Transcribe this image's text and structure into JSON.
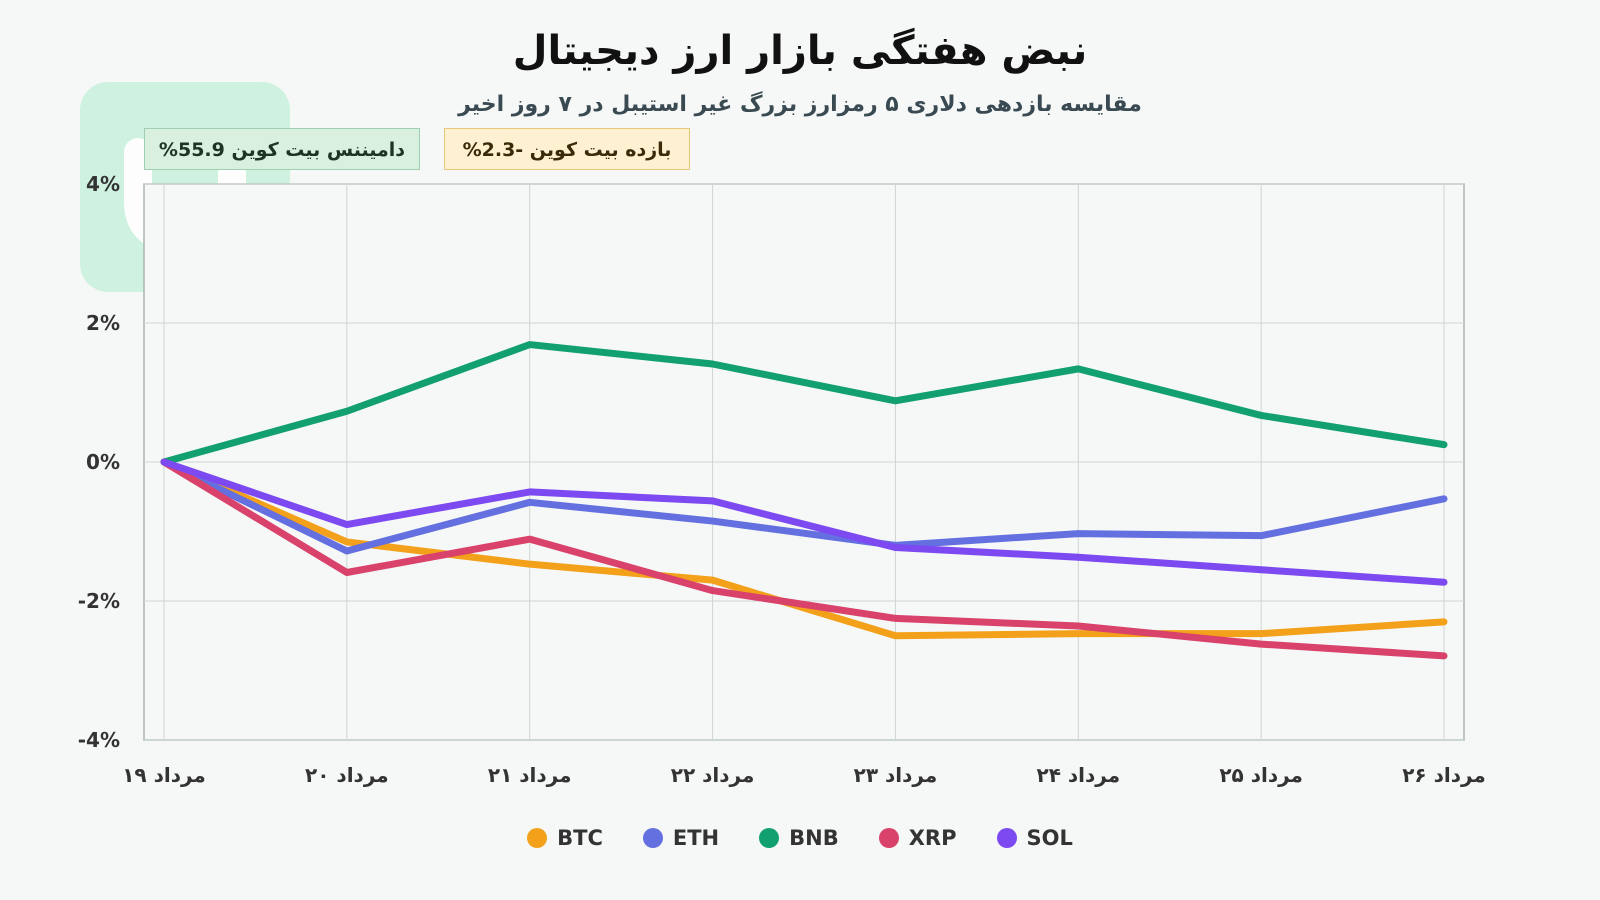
{
  "header": {
    "title": "نبض هفتگی بازار ارز دیجیتال",
    "subtitle": "مقایسه بازدهی دلاری ۵ رمزارز بزرگ غیر استیبل در ۷ روز اخیر"
  },
  "badges": {
    "dominance": "دامیننس بیت کوین 55.9%",
    "return": "بازده بیت کوین -2.3%"
  },
  "colors": {
    "logo": "#c9f2dc",
    "BTC": "#f3a01a",
    "ETH": "#6470e0",
    "BNB": "#12a070",
    "XRP": "#d9426a",
    "SOL": "#7c4af0"
  },
  "chart_data": {
    "type": "line",
    "x": [
      "مرداد ۱۹",
      "مرداد ۲۰",
      "مرداد ۲۱",
      "مرداد ۲۲",
      "مرداد ۲۳",
      "مرداد ۲۴",
      "مرداد ۲۵",
      "مرداد ۲۶"
    ],
    "ylim": [
      -4,
      4
    ],
    "yticks": [
      4,
      2,
      0,
      -2,
      -4
    ],
    "ytick_labels": [
      "4%",
      "2%",
      "0%",
      "-2%",
      "-4%"
    ],
    "grid": true,
    "legend_position": "bottom",
    "series": [
      {
        "name": "BTC",
        "color": "#f3a01a",
        "values": [
          0,
          -1.15,
          -1.47,
          -1.7,
          -2.5,
          -2.47,
          -2.47,
          -2.3
        ]
      },
      {
        "name": "ETH",
        "color": "#6470e0",
        "values": [
          0,
          -1.28,
          -0.58,
          -0.85,
          -1.2,
          -1.03,
          -1.06,
          -0.53
        ]
      },
      {
        "name": "BNB",
        "color": "#12a070",
        "values": [
          0,
          0.73,
          1.69,
          1.41,
          0.88,
          1.34,
          0.67,
          0.25
        ]
      },
      {
        "name": "XRP",
        "color": "#d9426a",
        "values": [
          0,
          -1.59,
          -1.11,
          -1.85,
          -2.25,
          -2.36,
          -2.62,
          -2.79
        ]
      },
      {
        "name": "SOL",
        "color": "#7c4af0",
        "values": [
          0,
          -0.9,
          -0.43,
          -0.56,
          -1.23,
          -1.37,
          -1.55,
          -1.73
        ]
      }
    ]
  }
}
